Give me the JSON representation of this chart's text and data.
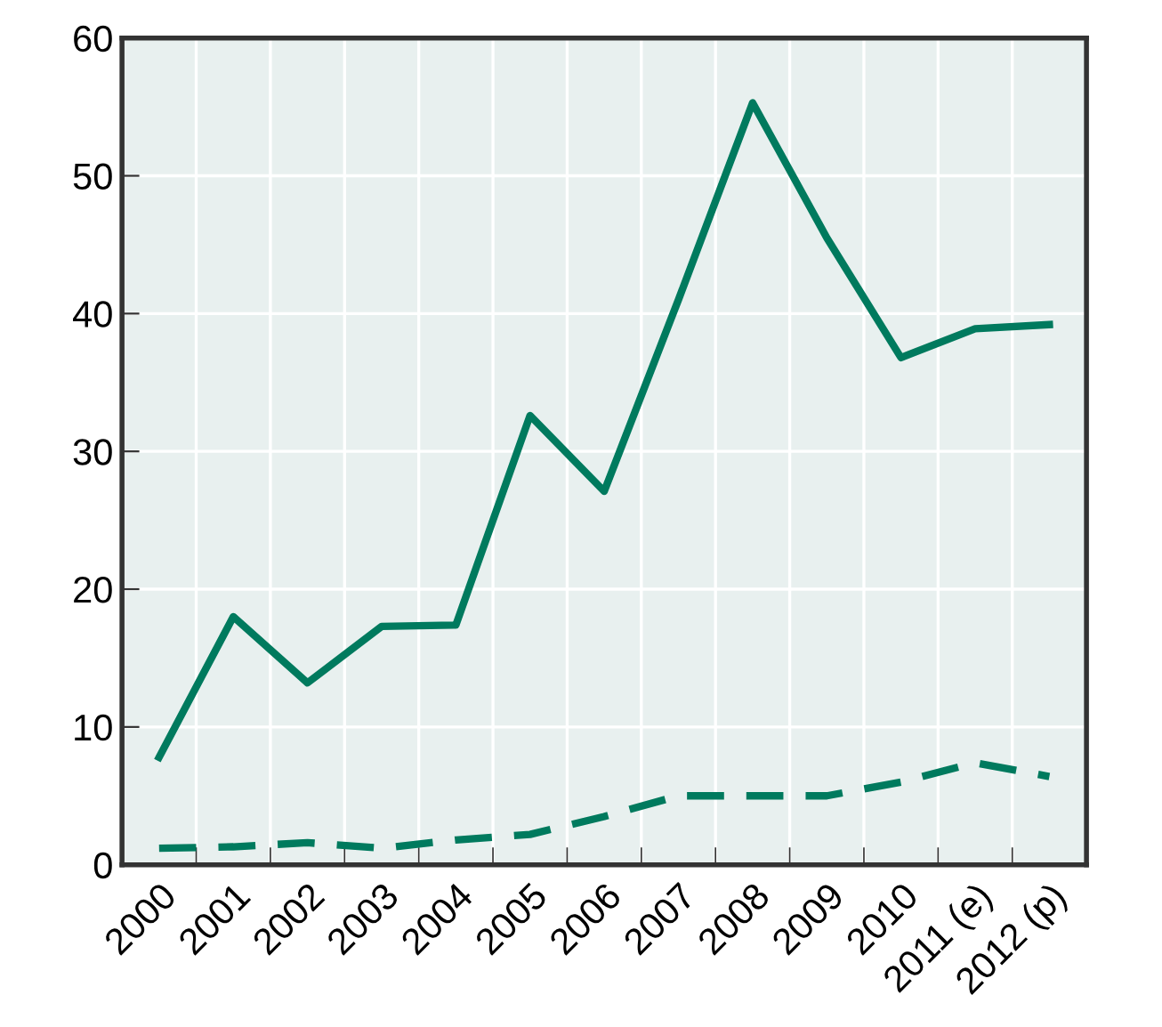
{
  "chart_data": {
    "type": "line",
    "categories": [
      "2000",
      "2001",
      "2002",
      "2003",
      "2004",
      "2005",
      "2006",
      "2007",
      "2008",
      "2009",
      "2010",
      "2011 (e)",
      "2012 (p)"
    ],
    "series": [
      {
        "color": "#007a5e",
        "line_style": "solid",
        "values": [
          7.8,
          18,
          13.2,
          17.3,
          17.4,
          32.6,
          27.1,
          41,
          55.3,
          45.5,
          36.8,
          38.9,
          39.2
        ]
      },
      {
        "color": "#007a5e",
        "line_style": "dashed",
        "values": [
          1.2,
          1.3,
          1.6,
          1.2,
          1.8,
          2.2,
          3.5,
          5.0,
          5.0,
          5.0,
          6.0,
          7.4,
          6.4
        ]
      }
    ],
    "ylim": [
      0,
      60
    ],
    "yticks": [
      0,
      10,
      20,
      30,
      40,
      50,
      60
    ],
    "grid": true,
    "marker": "none"
  }
}
